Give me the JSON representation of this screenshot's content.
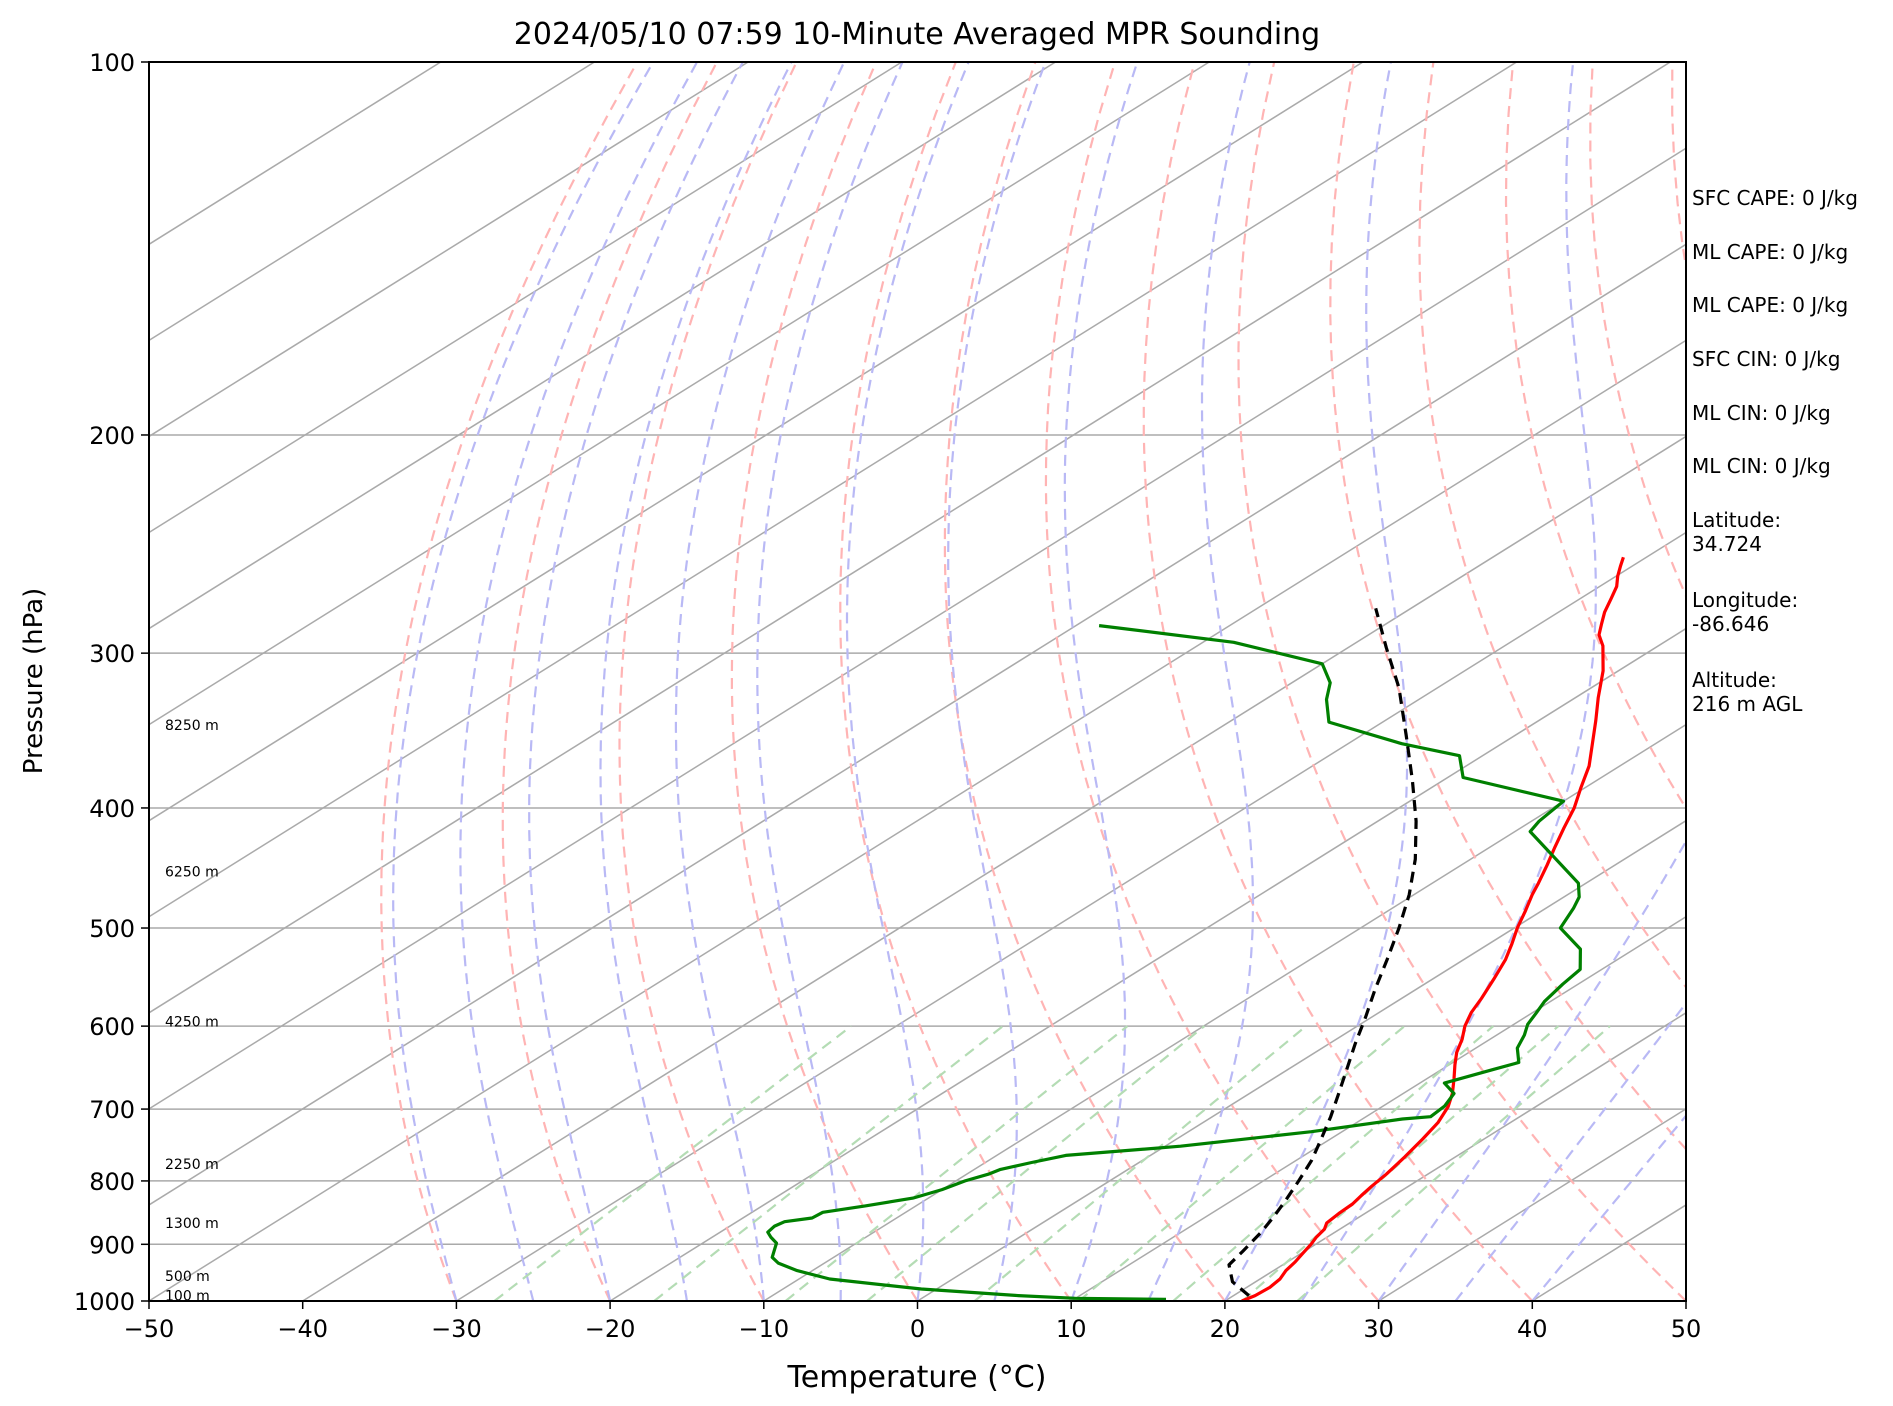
{
  "chart_data": {
    "type": "line",
    "title": "2024/05/10 07:59 10-Minute Averaged MPR Sounding",
    "xlabel": "Temperature (°C)",
    "ylabel": "Pressure (hPa)",
    "xlim": [
      -50,
      50
    ],
    "ylim": [
      1000,
      100
    ],
    "y_scale": "log",
    "skew": "skew-T diagram (isotherms slanted)",
    "grid": true,
    "x_ticks": [
      -50,
      -40,
      -30,
      -20,
      -10,
      0,
      10,
      20,
      30,
      40,
      50
    ],
    "x_tick_labels": [
      "−50",
      "−40",
      "−30",
      "−20",
      "−10",
      "0",
      "10",
      "20",
      "30",
      "40",
      "50"
    ],
    "y_ticks": [
      100,
      200,
      300,
      400,
      500,
      600,
      700,
      800,
      900,
      1000
    ],
    "y_tick_labels": [
      "100",
      "200",
      "300",
      "400",
      "500",
      "600",
      "700",
      "800",
      "900",
      "1000"
    ],
    "height_labels": [
      {
        "text": "100 m",
        "pressure": 990
      },
      {
        "text": "500 m",
        "pressure": 955
      },
      {
        "text": "1300 m",
        "pressure": 865
      },
      {
        "text": "2250 m",
        "pressure": 775
      },
      {
        "text": "4250 m",
        "pressure": 595
      },
      {
        "text": "6250 m",
        "pressure": 450
      },
      {
        "text": "8250 m",
        "pressure": 343
      }
    ],
    "series": [
      {
        "kind": "temperature",
        "color": "#ff0000",
        "points": [
          [
            21.1,
            1000
          ],
          [
            21.4,
            990
          ],
          [
            21.5,
            975
          ],
          [
            21.3,
            960
          ],
          [
            20.8,
            945
          ],
          [
            20.5,
            930
          ],
          [
            20.1,
            915
          ],
          [
            19.7,
            900
          ],
          [
            19.3,
            888
          ],
          [
            19.0,
            875
          ],
          [
            18.5,
            865
          ],
          [
            18.3,
            850
          ],
          [
            18.2,
            835
          ],
          [
            17.9,
            822
          ],
          [
            17.6,
            808
          ],
          [
            17.3,
            790
          ],
          [
            16.7,
            765
          ],
          [
            16.0,
            740
          ],
          [
            15.3,
            718
          ],
          [
            14.3,
            697
          ],
          [
            13.2,
            680
          ],
          [
            11.8,
            662
          ],
          [
            10.4,
            645
          ],
          [
            9.2,
            630
          ],
          [
            8.2,
            615
          ],
          [
            7.0,
            600
          ],
          [
            6.0,
            585
          ],
          [
            5.2,
            570
          ],
          [
            4.0,
            550
          ],
          [
            2.7,
            530
          ],
          [
            1.5,
            515
          ],
          [
            0.2,
            500
          ],
          [
            -1.0,
            485
          ],
          [
            -2.3,
            470
          ],
          [
            -3.1,
            460
          ],
          [
            -4.4,
            445
          ],
          [
            -5.8,
            430
          ],
          [
            -7.2,
            415
          ],
          [
            -8.6,
            400
          ],
          [
            -10.3,
            385
          ],
          [
            -12.0,
            370
          ],
          [
            -14.1,
            355
          ],
          [
            -16.3,
            340
          ],
          [
            -18.5,
            326
          ],
          [
            -21.0,
            310
          ],
          [
            -23.6,
            296
          ],
          [
            -25.0,
            290
          ],
          [
            -26.0,
            284
          ],
          [
            -27.0,
            278
          ],
          [
            -28.0,
            271
          ],
          [
            -28.9,
            265
          ],
          [
            -29.9,
            260
          ],
          [
            -30.8,
            255
          ],
          [
            -31.5,
            251
          ]
        ]
      },
      {
        "kind": "dewpoint",
        "color": "#008000",
        "points": [
          [
            16.0,
            997
          ],
          [
            10.0,
            995
          ],
          [
            6.0,
            990
          ],
          [
            -1.0,
            978
          ],
          [
            -8.0,
            960
          ],
          [
            -11.0,
            945
          ],
          [
            -13.0,
            932
          ],
          [
            -14.0,
            922
          ],
          [
            -14.6,
            910
          ],
          [
            -15.2,
            898
          ],
          [
            -16.2,
            888
          ],
          [
            -16.9,
            880
          ],
          [
            -17.1,
            870
          ],
          [
            -16.9,
            863
          ],
          [
            -15.5,
            857
          ],
          [
            -15.4,
            848
          ],
          [
            -13.3,
            838
          ],
          [
            -11.0,
            826
          ],
          [
            -10.0,
            813
          ],
          [
            -9.4,
            800
          ],
          [
            -8.6,
            790
          ],
          [
            -8.3,
            783
          ],
          [
            -7.0,
            773
          ],
          [
            -5.5,
            763
          ],
          [
            1.0,
            750
          ],
          [
            8.0,
            730
          ],
          [
            12.6,
            713
          ],
          [
            14.2,
            710
          ],
          [
            14.0,
            696
          ],
          [
            13.3,
            680
          ],
          [
            11.6,
            667
          ],
          [
            13.4,
            650
          ],
          [
            14.3,
            642
          ],
          [
            12.7,
            625
          ],
          [
            11.8,
            610
          ],
          [
            10.9,
            598
          ],
          [
            10.3,
            586
          ],
          [
            9.6,
            573
          ],
          [
            9.0,
            555
          ],
          [
            8.6,
            540
          ],
          [
            6.5,
            520
          ],
          [
            3.0,
            500
          ],
          [
            1.8,
            482
          ],
          [
            1.0,
            472
          ],
          [
            -0.5,
            460
          ],
          [
            -9.0,
            418
          ],
          [
            -9.5,
            410
          ],
          [
            -10.0,
            395
          ],
          [
            -19.0,
            378
          ],
          [
            -21.5,
            363
          ],
          [
            -26.5,
            355
          ],
          [
            -33.5,
            341
          ],
          [
            -36.0,
            327
          ],
          [
            -37.5,
            317
          ],
          [
            -40.0,
            306
          ],
          [
            -48.0,
            294
          ],
          [
            -58.5,
            285
          ]
        ]
      },
      {
        "kind": "parcel",
        "color": "#000000",
        "style": "dashed",
        "points": [
          [
            21.0,
            990
          ],
          [
            18.5,
            965
          ],
          [
            16.5,
            935
          ],
          [
            16.0,
            912
          ],
          [
            15.2,
            880
          ],
          [
            14.4,
            855
          ],
          [
            13.5,
            830
          ],
          [
            12.3,
            800
          ],
          [
            11.0,
            770
          ],
          [
            9.4,
            740
          ],
          [
            7.7,
            710
          ],
          [
            5.8,
            680
          ],
          [
            3.8,
            650
          ],
          [
            1.7,
            620
          ],
          [
            -0.4,
            590
          ],
          [
            -2.7,
            560
          ],
          [
            -5.0,
            530
          ],
          [
            -7.5,
            500
          ],
          [
            -10.3,
            470
          ],
          [
            -13.6,
            440
          ],
          [
            -17.5,
            410
          ],
          [
            -22.0,
            380
          ],
          [
            -27.0,
            350
          ],
          [
            -32.5,
            320
          ],
          [
            -37.5,
            297
          ],
          [
            -42.3,
            276
          ]
        ]
      }
    ],
    "background_lines": [
      {
        "kind": "isotherms",
        "color": "#aaaaaa",
        "style": "solid"
      },
      {
        "kind": "dry adiabats",
        "color": "#ffb4b4",
        "style": "dashed"
      },
      {
        "kind": "moist adiabats",
        "color": "#b9b9f5",
        "style": "dashed"
      },
      {
        "kind": "mixing ratio lines",
        "color": "#b4dcb4",
        "style": "dashed"
      }
    ]
  },
  "sidebar": {
    "sfc_cape": "SFC CAPE: 0 J/kg",
    "ml_cape_1": "ML CAPE: 0 J/kg",
    "ml_cape_2": "ML CAPE: 0 J/kg",
    "sfc_cin": "SFC CIN: 0 J/kg",
    "ml_cin_1": "ML CIN: 0 J/kg",
    "ml_cin_2": "ML CIN: 0 J/kg",
    "latitude_label": "Latitude:",
    "latitude_value": "34.724",
    "longitude_label": "Longitude:",
    "longitude_value": "-86.646",
    "altitude_label": "Altitude:",
    "altitude_value": "216 m AGL"
  }
}
